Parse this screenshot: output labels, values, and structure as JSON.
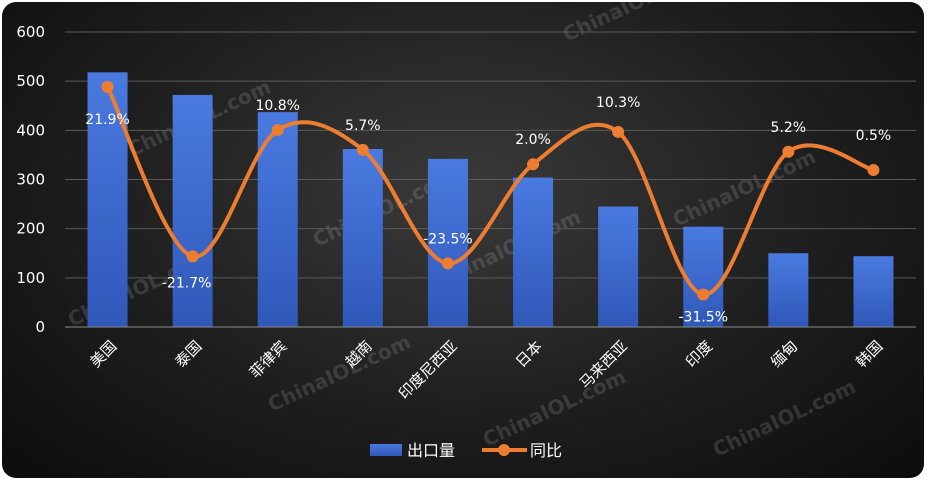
{
  "chart_data": {
    "type": "bar",
    "categories": [
      "美国",
      "泰国",
      "菲律宾",
      "越南",
      "印度尼西亚",
      "日本",
      "马来西亚",
      "印度",
      "缅甸",
      "韩国"
    ],
    "series": [
      {
        "name": "出口量",
        "type": "bar",
        "axis": "left",
        "values": [
          518,
          472,
          437,
          362,
          342,
          304,
          245,
          204,
          150,
          144
        ]
      },
      {
        "name": "同比",
        "type": "line",
        "axis": "right",
        "values": [
          21.9,
          -21.7,
          10.8,
          5.7,
          -23.5,
          2.0,
          10.3,
          -31.5,
          5.2,
          0.5
        ],
        "labels": [
          "21.9%",
          "-21.7%",
          "10.8%",
          "5.7%",
          "-23.5%",
          "2.0%",
          "10.3%",
          "-31.5%",
          "5.2%",
          "0.5%"
        ]
      }
    ],
    "y_ticks": [
      "0",
      "100",
      "200",
      "300",
      "400",
      "500",
      "600"
    ],
    "ylim": [
      0,
      600
    ],
    "grid": true,
    "legend_position": "bottom",
    "watermark": "ChinaIOL.com",
    "colors": {
      "bar_top": "#4a7ae0",
      "bar_bottom": "#2f58b8",
      "line": "#ed7d31",
      "grid": "#5a5a5a"
    }
  }
}
